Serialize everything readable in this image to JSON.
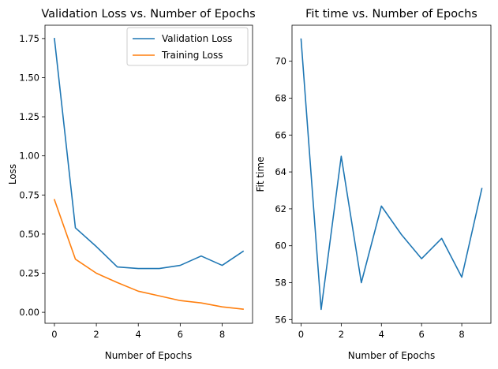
{
  "chart_data": [
    {
      "type": "line",
      "title": "Validation Loss vs. Number of Epochs",
      "xlabel": "Number of Epochs",
      "ylabel": "Loss",
      "xlim": [
        -0.45,
        9.45
      ],
      "ylim": [
        -0.07,
        1.835
      ],
      "grid": false,
      "legend": "top-right",
      "x_ticks": [
        0,
        2,
        4,
        6,
        8
      ],
      "y_ticks": [
        0.0,
        0.25,
        0.5,
        0.75,
        1.0,
        1.25,
        1.5,
        1.75
      ],
      "y_tick_labels": [
        "0.00",
        "0.25",
        "0.50",
        "0.75",
        "1.00",
        "1.25",
        "1.50",
        "1.75"
      ],
      "x": [
        0,
        1,
        2,
        3,
        4,
        5,
        6,
        7,
        8,
        9
      ],
      "series": [
        {
          "name": "Validation Loss",
          "color": "#1f77b4",
          "values": [
            1.75,
            0.54,
            0.42,
            0.29,
            0.28,
            0.28,
            0.3,
            0.36,
            0.3,
            0.39
          ]
        },
        {
          "name": "Training Loss",
          "color": "#ff7f0e",
          "values": [
            0.72,
            0.34,
            0.25,
            0.19,
            0.135,
            0.105,
            0.075,
            0.06,
            0.035,
            0.02
          ]
        }
      ]
    },
    {
      "type": "line",
      "title": "Fit time vs. Number of Epochs",
      "xlabel": "Number of Epochs",
      "ylabel": "Fit time",
      "xlim": [
        -0.45,
        9.45
      ],
      "ylim": [
        55.8,
        71.95
      ],
      "grid": false,
      "legend": "none",
      "x_ticks": [
        0,
        2,
        4,
        6,
        8
      ],
      "y_ticks": [
        56,
        58,
        60,
        62,
        64,
        66,
        68,
        70
      ],
      "y_tick_labels": [
        "56",
        "58",
        "60",
        "62",
        "64",
        "66",
        "68",
        "70"
      ],
      "x": [
        0,
        1,
        2,
        3,
        4,
        5,
        6,
        7,
        8,
        9
      ],
      "series": [
        {
          "color": "#1f77b4",
          "values": [
            71.2,
            56.55,
            64.85,
            58.0,
            62.15,
            60.6,
            59.3,
            60.4,
            58.3,
            63.1
          ]
        }
      ]
    }
  ]
}
